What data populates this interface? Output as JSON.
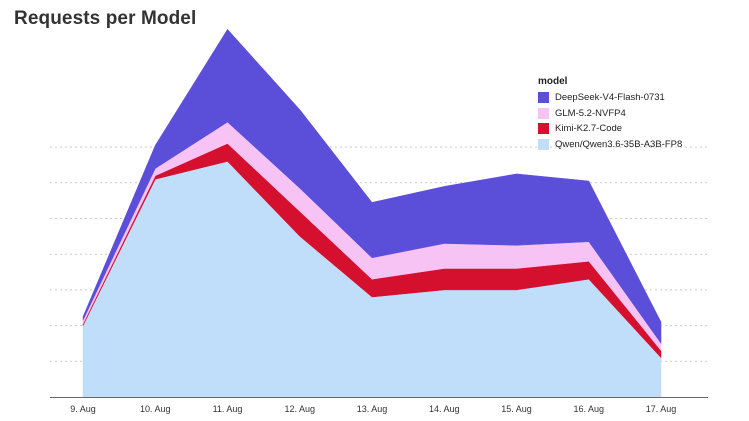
{
  "title": "Requests per Model",
  "chart_data": {
    "type": "area",
    "stacked": true,
    "title": "Requests per Model",
    "categories": [
      "9. Aug",
      "10. Aug",
      "11. Aug",
      "12. Aug",
      "13. Aug",
      "14. Aug",
      "15. Aug",
      "16. Aug",
      "17. Aug"
    ],
    "ylim": [
      0,
      100
    ],
    "grid": "horizontal dashed",
    "legend_title": "model",
    "legend_position": "top-right",
    "series": [
      {
        "name": "Qwen/Qwen3.6-35B-A3B-FP8",
        "color": "#c0ddfa",
        "values": [
          20,
          61,
          66,
          45,
          28,
          30,
          30,
          33,
          11
        ]
      },
      {
        "name": "Kimi-K2.7-Code",
        "color": "#d4102e",
        "values": [
          0.5,
          1,
          5,
          7,
          5,
          6,
          6,
          5,
          2
        ]
      },
      {
        "name": "GLM-5.2-NVFP4",
        "color": "#f7c3f4",
        "values": [
          1,
          2,
          6,
          6.5,
          6,
          7,
          6.5,
          5.5,
          2
        ]
      },
      {
        "name": "DeepSeek-V4-Flash-0731",
        "color": "#5b4fd9",
        "values": [
          1,
          6.5,
          26,
          22,
          15.5,
          16,
          20,
          17,
          6
        ]
      }
    ],
    "legend_order": [
      "DeepSeek-V4-Flash-0731",
      "GLM-5.2-NVFP4",
      "Kimi-K2.7-Code",
      "Qwen/Qwen3.6-35B-A3B-FP8"
    ]
  }
}
